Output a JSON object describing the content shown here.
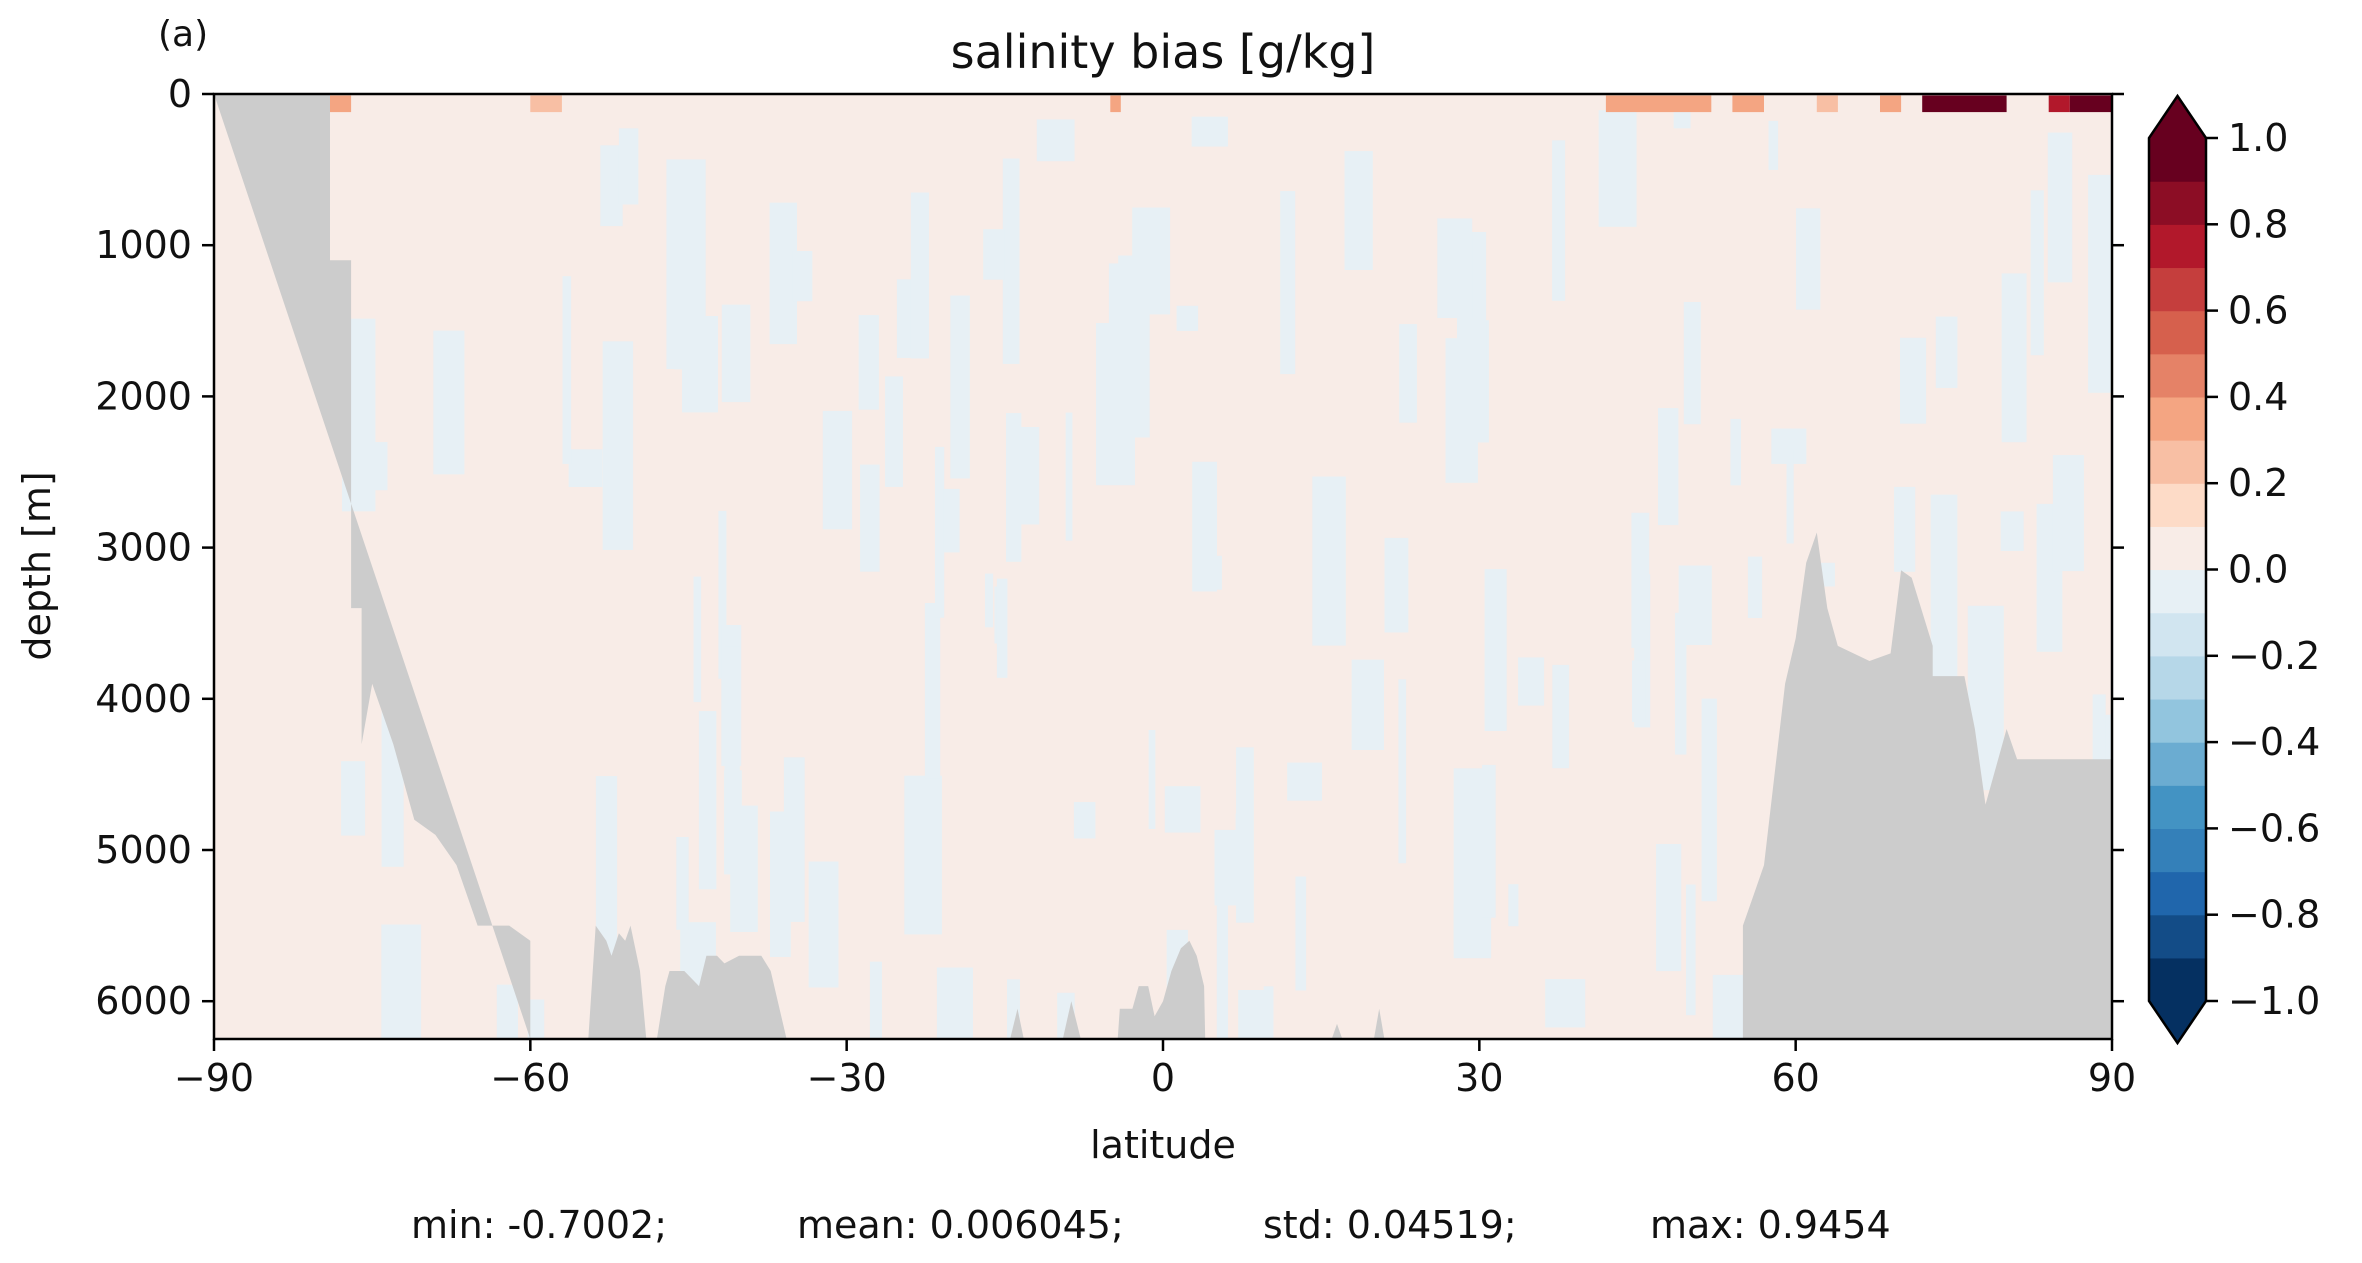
{
  "chart_data": {
    "type": "heatmap",
    "panel_label": "(a)",
    "title": "salinity bias [g/kg]",
    "xlabel": "latitude",
    "ylabel": "depth [m]",
    "xlim": [
      -90,
      90
    ],
    "ylim": [
      6250,
      0
    ],
    "x_ticks": [
      -90,
      -60,
      -30,
      0,
      30,
      60,
      90
    ],
    "x_tick_labels": [
      "−90",
      "−60",
      "−30",
      "0",
      "30",
      "60",
      "90"
    ],
    "y_ticks": [
      0,
      1000,
      2000,
      3000,
      4000,
      5000,
      6000
    ],
    "y_tick_labels": [
      "0",
      "1000",
      "2000",
      "3000",
      "4000",
      "5000",
      "6000"
    ],
    "colorbar": {
      "colormap": "RdBu_r",
      "vmin": -1.0,
      "vmax": 1.0,
      "levels": 20,
      "extend": "both",
      "ticks": [
        1.0,
        0.8,
        0.6,
        0.4,
        0.2,
        0.0,
        -0.2,
        -0.4,
        -0.6,
        -0.8,
        -1.0
      ],
      "tick_labels": [
        "1.0",
        "0.8",
        "0.6",
        "0.4",
        "0.2",
        "0.0",
        "−0.2",
        "−0.4",
        "−0.6",
        "−0.8",
        "−1.0"
      ],
      "colors": [
        "#053061",
        "#134c87",
        "#2066ac",
        "#3480b9",
        "#4393c3",
        "#6bacd1",
        "#92c5de",
        "#b6d7e8",
        "#d1e5f0",
        "#e7f0f5",
        "#f8ece7",
        "#fddbc7",
        "#f8bfa4",
        "#f4a582",
        "#e58267",
        "#d6604d",
        "#c53e3d",
        "#b2182b",
        "#8c0d25",
        "#67001f"
      ],
      "under_color": "#053061",
      "over_color": "#67001f"
    },
    "land_color": "#cccccc",
    "background_bias_color": "#f8ece7",
    "bathymetry": {
      "south_lat": [
        -90,
        -79,
        -79,
        -77,
        -77,
        -76,
        -76,
        -75,
        -73,
        -71,
        -69,
        -67,
        -65,
        -62,
        -60,
        -60
      ],
      "south_depth": [
        0,
        0,
        1100,
        1100,
        3400,
        3400,
        4300,
        3900,
        4300,
        4800,
        4900,
        5100,
        5500,
        5500,
        5600,
        6250
      ],
      "north_lat": [
        90,
        90,
        81,
        80,
        78,
        77,
        76,
        73,
        73,
        71,
        70,
        69,
        67,
        64,
        63,
        62,
        61,
        60,
        59,
        57,
        56,
        55,
        55
      ],
      "north_depth": [
        6250,
        4400,
        4400,
        4200,
        4700,
        4200,
        3850,
        3850,
        3650,
        3200,
        3150,
        3700,
        3750,
        3650,
        3400,
        2900,
        3100,
        3600,
        3900,
        5100,
        5300,
        5500,
        6250
      ],
      "seamounts": [
        {
          "lat": [
            -54.5,
            -53.8,
            -52.8,
            -52.3,
            -51.6,
            -51.0,
            -50.5,
            -49.6,
            -49.0,
            -54.5
          ],
          "depth": [
            6250,
            5500,
            5600,
            5700,
            5550,
            5600,
            5500,
            5800,
            6250,
            6250
          ]
        },
        {
          "lat": [
            -48.0,
            -47.2,
            -46.8,
            -45.4,
            -44.0,
            -43.3,
            -42.3,
            -41.6,
            -40.2,
            -38.1,
            -37.2,
            -35.7,
            -48.0
          ],
          "depth": [
            6250,
            5900,
            5800,
            5800,
            5900,
            5700,
            5700,
            5750,
            5700,
            5700,
            5800,
            6250,
            6250
          ]
        },
        {
          "lat": [
            -14.5,
            -13.8,
            -13.2,
            -14.5
          ],
          "depth": [
            6250,
            6050,
            6250,
            6250
          ]
        },
        {
          "lat": [
            -9.5,
            -8.7,
            -7.8,
            -9.5
          ],
          "depth": [
            6250,
            6000,
            6250,
            6250
          ]
        },
        {
          "lat": [
            -4.3,
            -4.1,
            -2.9,
            -2.3,
            -1.4,
            -0.8,
            0.0,
            0.8,
            1.7,
            2.5,
            3.2,
            3.9,
            4.0,
            -4.3
          ],
          "depth": [
            6250,
            6050,
            6050,
            5900,
            5900,
            6100,
            6000,
            5800,
            5650,
            5600,
            5700,
            5900,
            6250,
            6250
          ]
        },
        {
          "lat": [
            16.0,
            16.5,
            17.0,
            16.0
          ],
          "depth": [
            6250,
            6150,
            6250,
            6250
          ]
        },
        {
          "lat": [
            20.0,
            20.5,
            21.0,
            20.0
          ],
          "depth": [
            6250,
            6050,
            6250,
            6250
          ]
        }
      ]
    },
    "stats_line": {
      "min": "min: -0.7002;",
      "mean": "mean: 0.006045;",
      "std": "std: 0.04519;",
      "max": "max: 0.9454"
    }
  }
}
